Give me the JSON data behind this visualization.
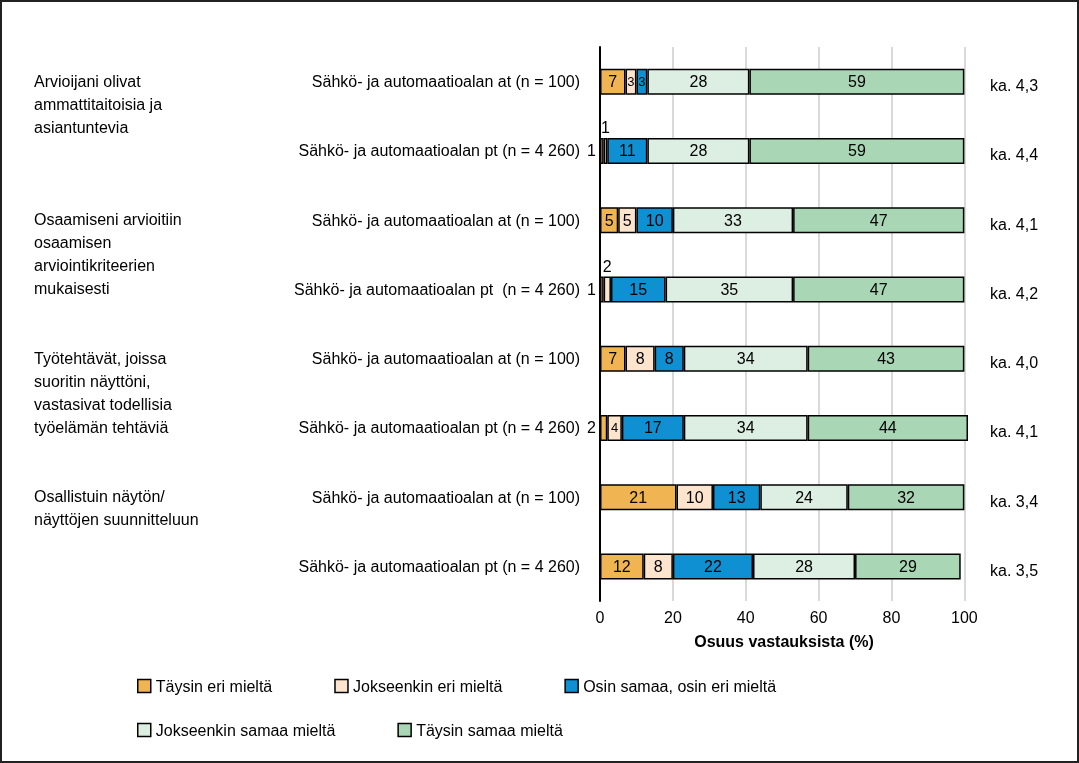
{
  "chart_data": {
    "type": "bar",
    "orientation": "horizontal",
    "stacked": true,
    "data_labels": true,
    "categories": [
      "Sähkö- ja automaatioalan at (n = 100)",
      "Sähkö- ja automaatioalan pt (n = 4 260)",
      "Sähkö- ja automaatioalan at (n = 100)",
      "Sähkö- ja automaatioalan pt  (n = 4 260)",
      "Sähkö- ja automaatioalan at (n = 100)",
      "Sähkö- ja automaatioalan pt (n = 4 260)",
      "Sähkö- ja automaatioalan at (n = 100)",
      "Sähkö- ja automaatioalan pt (n = 4 260)"
    ],
    "series": [
      {
        "name": "Täysin eri mieltä",
        "color": "#f0b552",
        "values": [
          7,
          1,
          5,
          1,
          7,
          2,
          21,
          12
        ]
      },
      {
        "name": "Jokseenkin eri mieltä",
        "color": "#fde4cc",
        "values": [
          3,
          1,
          5,
          2,
          8,
          4,
          10,
          8
        ]
      },
      {
        "name": "Osin samaa, osin eri mieltä",
        "color": "#0e90d2",
        "values": [
          3,
          11,
          10,
          15,
          8,
          17,
          13,
          22
        ]
      },
      {
        "name": "Jokseenkin samaa mieltä",
        "color": "#ddeee2",
        "values": [
          28,
          28,
          33,
          35,
          34,
          34,
          24,
          28
        ]
      },
      {
        "name": "Täysin samaa mieltä",
        "color": "#a9d6b5",
        "values": [
          59,
          59,
          47,
          47,
          43,
          44,
          32,
          29
        ]
      }
    ],
    "xlabel": "Osuus vastauksista (%)",
    "xlim": [
      0,
      101
    ],
    "xticks": [
      0,
      20,
      40,
      60,
      80,
      100
    ],
    "grid": "x",
    "legend": "bottom",
    "annotations": [
      "Arvioijani olivat ammattitaitoisia ja asiantuntevia",
      "Osaamiseni arvioitiin osaamisen arviointikriteerien mukaisesti",
      "Työtehtävät, joissa suoritin näyttöni, vastasivat todellisia työelämän tehtäviä",
      "Osallistuin näytön/näyttöjen suunnitteluun",
      "ka. 4,3",
      "ka. 4,4",
      "ka. 4,1",
      "ka. 4,2",
      "ka. 4,0",
      "ka. 4,1",
      "ka. 3,4",
      "ka. 3,5"
    ]
  }
}
